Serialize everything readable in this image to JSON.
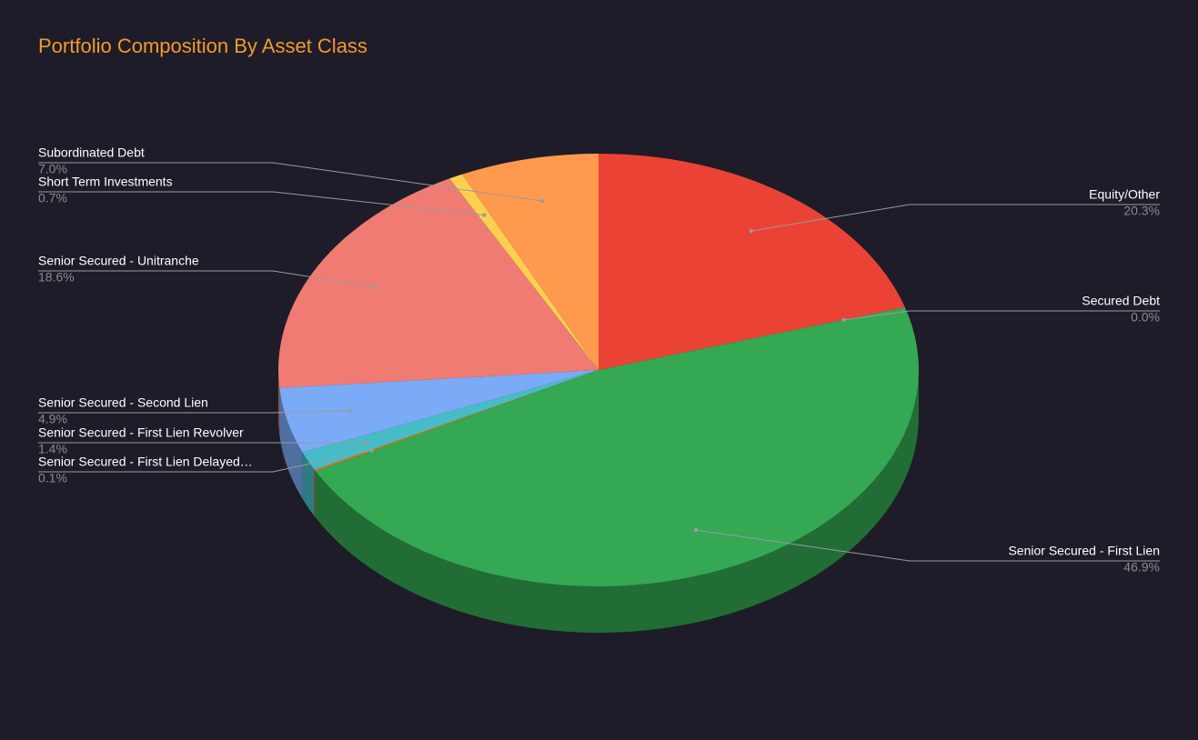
{
  "chart_data": {
    "type": "pie",
    "title": "Portfolio Composition By Asset Class",
    "categories": [
      "Equity/Other",
      "Secured Debt",
      "Senior Secured - First Lien",
      "Senior Secured - First Lien Delayed…",
      "Senior Secured - First Lien Revolver",
      "Senior Secured - Second Lien",
      "Senior Secured - Unitranche",
      "Short Term Investments",
      "Subordinated Debt"
    ],
    "values": [
      20.3,
      0.0,
      46.9,
      0.1,
      1.4,
      4.9,
      18.6,
      0.7,
      7.0
    ],
    "value_labels": [
      "20.3%",
      "0.0%",
      "46.9%",
      "0.1%",
      "1.4%",
      "4.9%",
      "18.6%",
      "0.7%",
      "7.0%"
    ],
    "colors": [
      "#ea4335",
      "#b5a1ff",
      "#34a853",
      "#ff6d01",
      "#46bdc6",
      "#7baaf7",
      "#f07b72",
      "#fcd04f",
      "#ff994d"
    ]
  }
}
